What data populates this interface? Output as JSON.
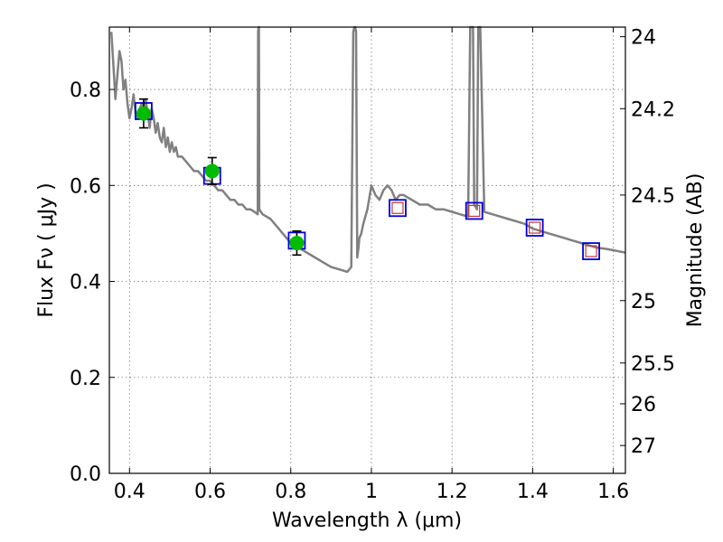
{
  "chart_data": {
    "type": "line",
    "title": "",
    "xlabel": "Wavelength  λ (μm)",
    "ylabel": "Flux  Fν  ( μJy )",
    "ylabel_right": "Magnitude (AB)",
    "xlim": [
      0.35,
      1.63
    ],
    "ylim": [
      0.0,
      0.93
    ],
    "grid": true,
    "x_ticks": [
      0.4,
      0.6,
      0.8,
      1.0,
      1.2,
      1.4,
      1.6
    ],
    "x_tick_labels": [
      "0.4",
      "0.6",
      "0.8",
      "1",
      "1.2",
      "1.4",
      "1.6"
    ],
    "y_ticks": [
      0.0,
      0.2,
      0.4,
      0.6,
      0.8
    ],
    "y_tick_labels": [
      "0.0",
      "0.2",
      "0.4",
      "0.6",
      "0.8"
    ],
    "right_ticks": [
      {
        "label": "24",
        "flux": 0.91
      },
      {
        "label": "24.2",
        "flux": 0.76
      },
      {
        "label": "24.5",
        "flux": 0.58
      },
      {
        "label": "25",
        "flux": 0.36
      },
      {
        "label": "25.5",
        "flux": 0.23
      },
      {
        "label": "26",
        "flux": 0.145
      },
      {
        "label": "27",
        "flux": 0.058
      }
    ],
    "series": [
      {
        "kind": "spectrum",
        "color": "#808080",
        "x": [
          0.355,
          0.36,
          0.365,
          0.37,
          0.375,
          0.38,
          0.385,
          0.39,
          0.395,
          0.4,
          0.405,
          0.41,
          0.415,
          0.42,
          0.425,
          0.43,
          0.435,
          0.44,
          0.445,
          0.45,
          0.455,
          0.46,
          0.465,
          0.47,
          0.475,
          0.48,
          0.485,
          0.49,
          0.495,
          0.5,
          0.505,
          0.51,
          0.515,
          0.52,
          0.53,
          0.54,
          0.55,
          0.56,
          0.57,
          0.58,
          0.59,
          0.6,
          0.61,
          0.62,
          0.63,
          0.64,
          0.65,
          0.66,
          0.67,
          0.68,
          0.69,
          0.7,
          0.71,
          0.718,
          0.719,
          0.72,
          0.721,
          0.722,
          0.73,
          0.74,
          0.75,
          0.76,
          0.77,
          0.78,
          0.79,
          0.8,
          0.82,
          0.84,
          0.86,
          0.88,
          0.9,
          0.92,
          0.94,
          0.95,
          0.955,
          0.958,
          0.96,
          0.962,
          0.965,
          0.968,
          0.97,
          0.975,
          0.98,
          0.99,
          1.0,
          1.01,
          1.02,
          1.03,
          1.04,
          1.05,
          1.06,
          1.07,
          1.08,
          1.1,
          1.12,
          1.14,
          1.16,
          1.18,
          1.2,
          1.22,
          1.24,
          1.245,
          1.25,
          1.252,
          1.255,
          1.262,
          1.265,
          1.268,
          1.27,
          1.28,
          1.3,
          1.32,
          1.34,
          1.36,
          1.38,
          1.4,
          1.42,
          1.44,
          1.46,
          1.48,
          1.5,
          1.52,
          1.54,
          1.56,
          1.58,
          1.6,
          1.63
        ],
        "y": [
          0.92,
          0.85,
          0.78,
          0.83,
          0.88,
          0.86,
          0.8,
          0.82,
          0.77,
          0.74,
          0.76,
          0.79,
          0.75,
          0.74,
          0.76,
          0.77,
          0.74,
          0.78,
          0.75,
          0.72,
          0.76,
          0.74,
          0.71,
          0.73,
          0.7,
          0.69,
          0.72,
          0.68,
          0.7,
          0.67,
          0.69,
          0.67,
          0.68,
          0.66,
          0.66,
          0.65,
          0.64,
          0.63,
          0.63,
          0.62,
          0.61,
          0.61,
          0.6,
          0.59,
          0.59,
          0.58,
          0.57,
          0.57,
          0.56,
          0.56,
          0.55,
          0.55,
          0.545,
          0.54,
          0.92,
          0.93,
          0.93,
          0.55,
          0.54,
          0.535,
          0.53,
          0.52,
          0.51,
          0.5,
          0.49,
          0.48,
          0.47,
          0.46,
          0.45,
          0.44,
          0.43,
          0.425,
          0.42,
          0.43,
          0.92,
          0.93,
          0.93,
          0.92,
          0.45,
          0.47,
          0.49,
          0.5,
          0.52,
          0.55,
          0.6,
          0.58,
          0.57,
          0.59,
          0.6,
          0.59,
          0.57,
          0.58,
          0.58,
          0.57,
          0.56,
          0.56,
          0.55,
          0.55,
          0.545,
          0.54,
          0.535,
          0.93,
          0.93,
          0.93,
          0.56,
          0.55,
          0.93,
          0.93,
          0.93,
          0.545,
          0.54,
          0.535,
          0.53,
          0.525,
          0.52,
          0.51,
          0.505,
          0.5,
          0.495,
          0.49,
          0.485,
          0.48,
          0.475,
          0.47,
          0.468,
          0.465,
          0.46
        ]
      },
      {
        "kind": "measured",
        "color": "#00bb00",
        "x": [
          0.435,
          0.605,
          0.815
        ],
        "y": [
          0.75,
          0.63,
          0.48
        ],
        "yerr": [
          0.03,
          0.028,
          0.025
        ]
      },
      {
        "kind": "model",
        "color": "#0000dd",
        "x": [
          0.435,
          0.605,
          0.815,
          1.065,
          1.255,
          1.405,
          1.545
        ],
        "y": [
          0.755,
          0.62,
          0.485,
          0.553,
          0.547,
          0.512,
          0.463
        ]
      },
      {
        "kind": "predicted",
        "color": "#cc3333",
        "x": [
          1.065,
          1.255,
          1.405,
          1.545
        ],
        "y": [
          0.553,
          0.547,
          0.512,
          0.463
        ]
      }
    ]
  }
}
